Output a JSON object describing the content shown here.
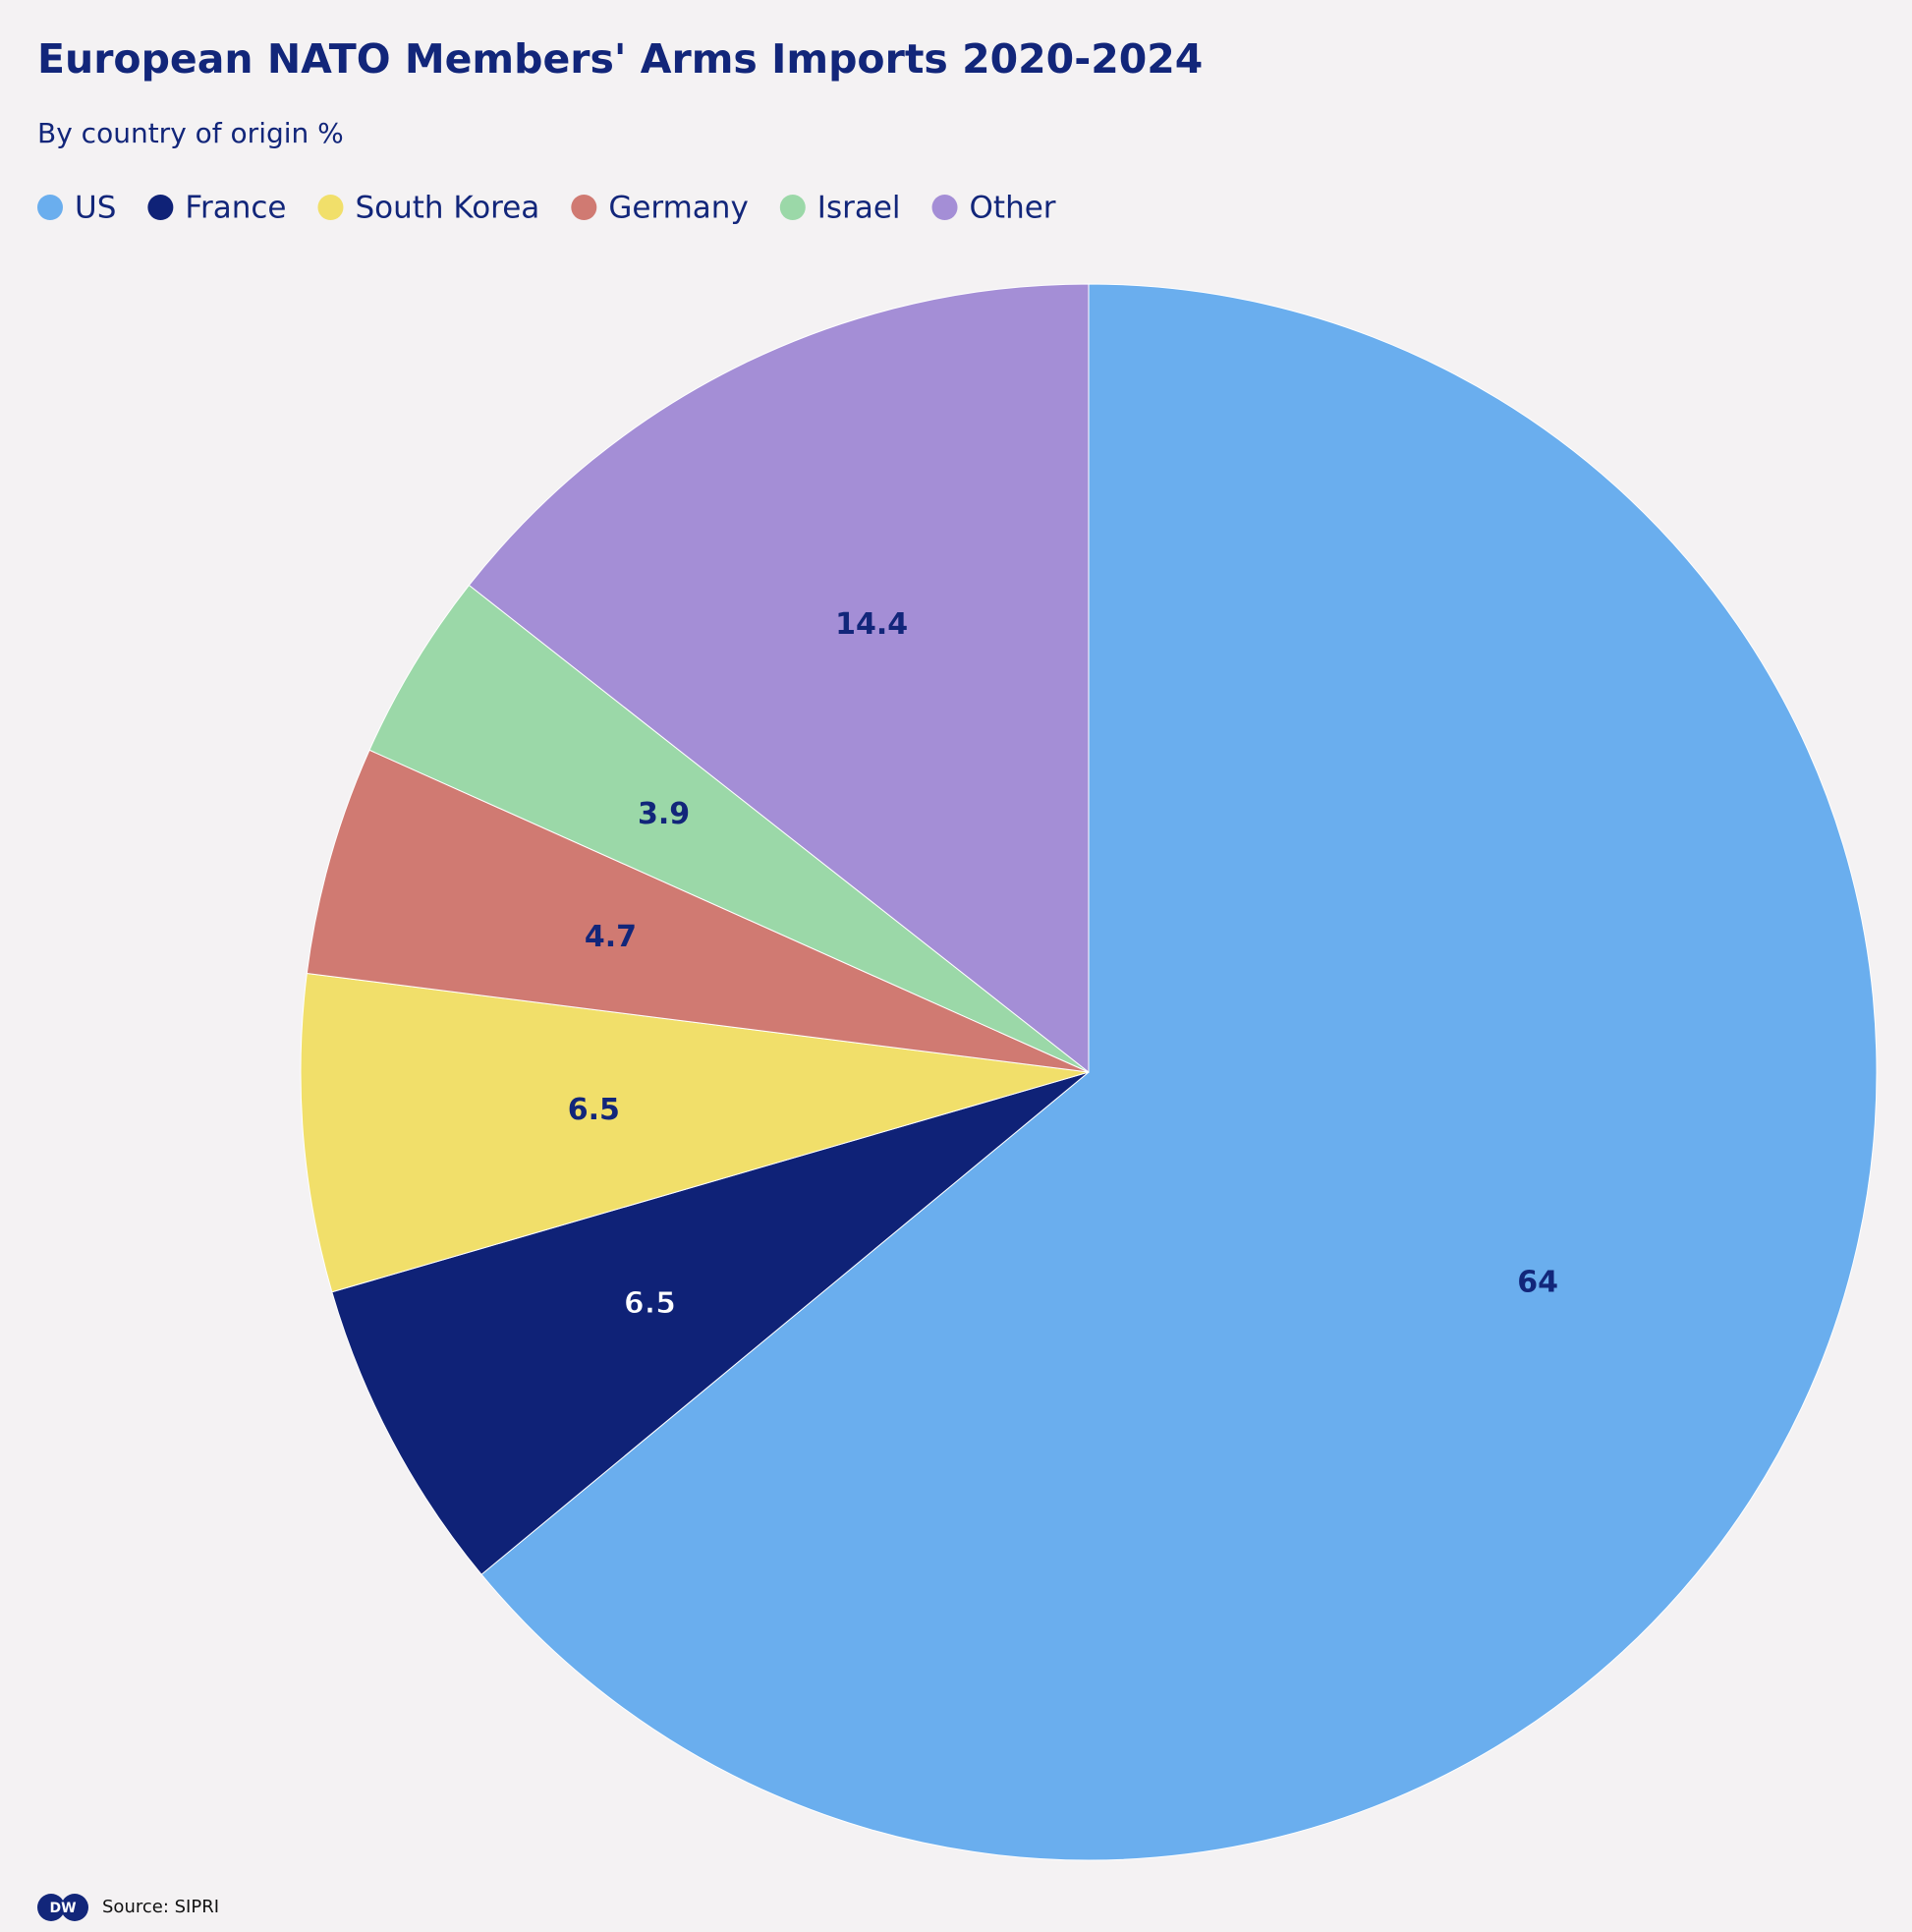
{
  "chart_data": {
    "type": "pie",
    "title": "European NATO Members' Arms Imports 2020-2024",
    "subtitle": "By country of origin %",
    "categories": [
      "US",
      "France",
      "South Korea",
      "Germany",
      "Israel",
      "Other"
    ],
    "values": [
      64,
      6.5,
      6.5,
      4.7,
      3.9,
      14.4
    ],
    "colors": [
      "#6aaeee",
      "#0f2277",
      "#f1df6a",
      "#d07a72",
      "#9bd8a8",
      "#a48ed6"
    ],
    "legend": "top-left",
    "source": "Source: SIPRI",
    "logo": "DW"
  }
}
